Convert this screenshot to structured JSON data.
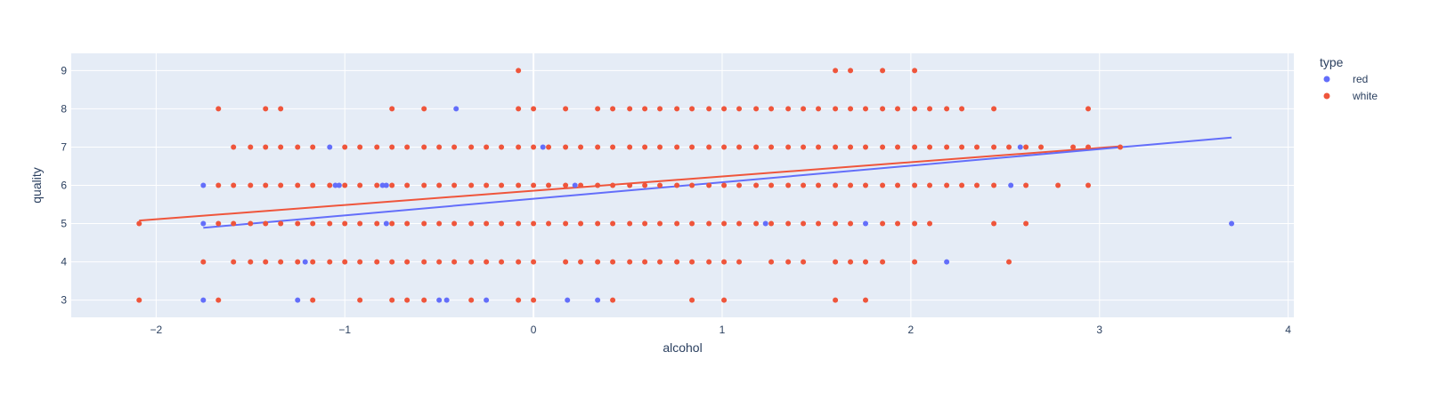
{
  "chart_data": {
    "type": "scatter",
    "title": "",
    "xlabel": "alcohol",
    "ylabel": "quality",
    "xlim": [
      -2.45,
      4.03
    ],
    "ylim": [
      2.55,
      9.45
    ],
    "x_ticks": [
      -2,
      -1,
      0,
      1,
      2,
      3,
      4
    ],
    "y_ticks": [
      3,
      4,
      5,
      6,
      7,
      8,
      9
    ],
    "grid": true,
    "plot_background": "#e5ecf6",
    "legend": {
      "title": "type",
      "placement": "top-right"
    },
    "series": [
      {
        "name": "red",
        "color": "#636efa",
        "points": [
          [
            -1.75,
            6
          ],
          [
            -1.75,
            5
          ],
          [
            -1.75,
            3
          ],
          [
            -1.08,
            7
          ],
          [
            -1.05,
            6
          ],
          [
            -1.03,
            6
          ],
          [
            -0.8,
            6
          ],
          [
            -0.78,
            6
          ],
          [
            -0.78,
            5
          ],
          [
            -1.21,
            4
          ],
          [
            -1.25,
            3
          ],
          [
            -0.5,
            3
          ],
          [
            -0.46,
            3
          ],
          [
            -0.25,
            3
          ],
          [
            -0.41,
            8
          ],
          [
            0.05,
            7
          ],
          [
            0.22,
            6
          ],
          [
            0.18,
            3
          ],
          [
            0.34,
            3
          ],
          [
            1.23,
            5
          ],
          [
            1.76,
            5
          ],
          [
            2.19,
            4
          ],
          [
            2.53,
            6
          ],
          [
            2.58,
            7
          ],
          [
            3.7,
            5
          ]
        ],
        "trendline": [
          [
            -1.75,
            4.89
          ],
          [
            3.7,
            7.25
          ]
        ]
      },
      {
        "name": "white",
        "color": "#ef553b",
        "points": [
          [
            -2.09,
            5
          ],
          [
            -2.09,
            3
          ],
          [
            -1.67,
            8
          ],
          [
            -1.67,
            6
          ],
          [
            -1.67,
            5
          ],
          [
            -1.67,
            3
          ],
          [
            -1.75,
            4
          ],
          [
            -1.59,
            7
          ],
          [
            -1.59,
            6
          ],
          [
            -1.59,
            5
          ],
          [
            -1.59,
            4
          ],
          [
            -1.5,
            7
          ],
          [
            -1.5,
            6
          ],
          [
            -1.5,
            5
          ],
          [
            -1.5,
            4
          ],
          [
            -1.42,
            8
          ],
          [
            -1.42,
            7
          ],
          [
            -1.42,
            6
          ],
          [
            -1.42,
            5
          ],
          [
            -1.42,
            4
          ],
          [
            -1.34,
            8
          ],
          [
            -1.34,
            7
          ],
          [
            -1.34,
            6
          ],
          [
            -1.34,
            5
          ],
          [
            -1.34,
            4
          ],
          [
            -1.25,
            7
          ],
          [
            -1.25,
            6
          ],
          [
            -1.25,
            5
          ],
          [
            -1.25,
            4
          ],
          [
            -1.17,
            7
          ],
          [
            -1.17,
            6
          ],
          [
            -1.17,
            5
          ],
          [
            -1.17,
            4
          ],
          [
            -1.17,
            3
          ],
          [
            -1.08,
            6
          ],
          [
            -1.08,
            5
          ],
          [
            -1.08,
            4
          ],
          [
            -1.0,
            7
          ],
          [
            -1.0,
            6
          ],
          [
            -1.0,
            5
          ],
          [
            -1.0,
            4
          ],
          [
            -0.92,
            7
          ],
          [
            -0.92,
            6
          ],
          [
            -0.92,
            5
          ],
          [
            -0.92,
            4
          ],
          [
            -0.92,
            3
          ],
          [
            -0.83,
            7
          ],
          [
            -0.83,
            6
          ],
          [
            -0.83,
            5
          ],
          [
            -0.83,
            4
          ],
          [
            -0.75,
            8
          ],
          [
            -0.75,
            7
          ],
          [
            -0.75,
            6
          ],
          [
            -0.75,
            5
          ],
          [
            -0.75,
            4
          ],
          [
            -0.75,
            3
          ],
          [
            -0.67,
            7
          ],
          [
            -0.67,
            6
          ],
          [
            -0.67,
            5
          ],
          [
            -0.67,
            4
          ],
          [
            -0.67,
            3
          ],
          [
            -0.58,
            8
          ],
          [
            -0.58,
            7
          ],
          [
            -0.58,
            6
          ],
          [
            -0.58,
            5
          ],
          [
            -0.58,
            4
          ],
          [
            -0.58,
            3
          ],
          [
            -0.5,
            7
          ],
          [
            -0.5,
            6
          ],
          [
            -0.5,
            5
          ],
          [
            -0.5,
            4
          ],
          [
            -0.42,
            7
          ],
          [
            -0.42,
            6
          ],
          [
            -0.42,
            5
          ],
          [
            -0.42,
            4
          ],
          [
            -0.33,
            7
          ],
          [
            -0.33,
            6
          ],
          [
            -0.33,
            5
          ],
          [
            -0.33,
            4
          ],
          [
            -0.33,
            3
          ],
          [
            -0.25,
            7
          ],
          [
            -0.25,
            6
          ],
          [
            -0.25,
            5
          ],
          [
            -0.25,
            4
          ],
          [
            -0.17,
            7
          ],
          [
            -0.17,
            6
          ],
          [
            -0.17,
            5
          ],
          [
            -0.17,
            4
          ],
          [
            -0.08,
            9
          ],
          [
            -0.08,
            8
          ],
          [
            -0.08,
            7
          ],
          [
            -0.08,
            6
          ],
          [
            -0.08,
            5
          ],
          [
            -0.08,
            4
          ],
          [
            -0.08,
            3
          ],
          [
            0.0,
            8
          ],
          [
            0.0,
            7
          ],
          [
            0.0,
            6
          ],
          [
            0.0,
            5
          ],
          [
            0.0,
            4
          ],
          [
            0.0,
            3
          ],
          [
            0.08,
            7
          ],
          [
            0.08,
            6
          ],
          [
            0.08,
            5
          ],
          [
            0.17,
            8
          ],
          [
            0.17,
            7
          ],
          [
            0.17,
            6
          ],
          [
            0.17,
            5
          ],
          [
            0.17,
            4
          ],
          [
            0.25,
            7
          ],
          [
            0.25,
            6
          ],
          [
            0.25,
            5
          ],
          [
            0.25,
            4
          ],
          [
            0.34,
            8
          ],
          [
            0.34,
            7
          ],
          [
            0.34,
            6
          ],
          [
            0.34,
            5
          ],
          [
            0.34,
            4
          ],
          [
            0.42,
            8
          ],
          [
            0.42,
            7
          ],
          [
            0.42,
            6
          ],
          [
            0.42,
            5
          ],
          [
            0.42,
            4
          ],
          [
            0.42,
            3
          ],
          [
            0.51,
            8
          ],
          [
            0.51,
            7
          ],
          [
            0.51,
            6
          ],
          [
            0.51,
            5
          ],
          [
            0.51,
            4
          ],
          [
            0.59,
            8
          ],
          [
            0.59,
            7
          ],
          [
            0.59,
            6
          ],
          [
            0.59,
            5
          ],
          [
            0.59,
            4
          ],
          [
            0.67,
            8
          ],
          [
            0.67,
            7
          ],
          [
            0.67,
            6
          ],
          [
            0.67,
            5
          ],
          [
            0.67,
            4
          ],
          [
            0.76,
            8
          ],
          [
            0.76,
            7
          ],
          [
            0.76,
            6
          ],
          [
            0.76,
            5
          ],
          [
            0.76,
            4
          ],
          [
            0.84,
            8
          ],
          [
            0.84,
            7
          ],
          [
            0.84,
            6
          ],
          [
            0.84,
            5
          ],
          [
            0.84,
            4
          ],
          [
            0.84,
            3
          ],
          [
            0.93,
            8
          ],
          [
            0.93,
            7
          ],
          [
            0.93,
            6
          ],
          [
            0.93,
            5
          ],
          [
            0.93,
            4
          ],
          [
            1.01,
            8
          ],
          [
            1.01,
            7
          ],
          [
            1.01,
            6
          ],
          [
            1.01,
            5
          ],
          [
            1.01,
            4
          ],
          [
            1.01,
            3
          ],
          [
            1.09,
            8
          ],
          [
            1.09,
            7
          ],
          [
            1.09,
            6
          ],
          [
            1.09,
            5
          ],
          [
            1.09,
            4
          ],
          [
            1.18,
            8
          ],
          [
            1.18,
            7
          ],
          [
            1.18,
            6
          ],
          [
            1.18,
            5
          ],
          [
            1.26,
            8
          ],
          [
            1.26,
            7
          ],
          [
            1.26,
            6
          ],
          [
            1.26,
            5
          ],
          [
            1.26,
            4
          ],
          [
            1.35,
            8
          ],
          [
            1.35,
            7
          ],
          [
            1.35,
            6
          ],
          [
            1.35,
            5
          ],
          [
            1.35,
            4
          ],
          [
            1.43,
            8
          ],
          [
            1.43,
            7
          ],
          [
            1.43,
            6
          ],
          [
            1.43,
            5
          ],
          [
            1.43,
            4
          ],
          [
            1.51,
            8
          ],
          [
            1.51,
            7
          ],
          [
            1.51,
            6
          ],
          [
            1.51,
            5
          ],
          [
            1.6,
            9
          ],
          [
            1.6,
            8
          ],
          [
            1.6,
            7
          ],
          [
            1.6,
            6
          ],
          [
            1.6,
            5
          ],
          [
            1.6,
            4
          ],
          [
            1.6,
            3
          ],
          [
            1.68,
            9
          ],
          [
            1.68,
            8
          ],
          [
            1.68,
            7
          ],
          [
            1.68,
            6
          ],
          [
            1.68,
            5
          ],
          [
            1.68,
            4
          ],
          [
            1.76,
            8
          ],
          [
            1.76,
            7
          ],
          [
            1.76,
            6
          ],
          [
            1.76,
            4
          ],
          [
            1.76,
            3
          ],
          [
            1.85,
            9
          ],
          [
            1.85,
            8
          ],
          [
            1.85,
            7
          ],
          [
            1.85,
            6
          ],
          [
            1.85,
            5
          ],
          [
            1.85,
            4
          ],
          [
            1.93,
            8
          ],
          [
            1.93,
            7
          ],
          [
            1.93,
            6
          ],
          [
            1.93,
            5
          ],
          [
            2.02,
            9
          ],
          [
            2.02,
            8
          ],
          [
            2.02,
            7
          ],
          [
            2.02,
            6
          ],
          [
            2.02,
            5
          ],
          [
            2.02,
            4
          ],
          [
            2.1,
            8
          ],
          [
            2.1,
            7
          ],
          [
            2.1,
            6
          ],
          [
            2.1,
            5
          ],
          [
            2.19,
            8
          ],
          [
            2.19,
            7
          ],
          [
            2.19,
            6
          ],
          [
            2.27,
            8
          ],
          [
            2.27,
            7
          ],
          [
            2.27,
            6
          ],
          [
            2.35,
            7
          ],
          [
            2.35,
            6
          ],
          [
            2.44,
            8
          ],
          [
            2.44,
            7
          ],
          [
            2.44,
            6
          ],
          [
            2.44,
            5
          ],
          [
            2.52,
            7
          ],
          [
            2.52,
            4
          ],
          [
            2.61,
            7
          ],
          [
            2.61,
            6
          ],
          [
            2.61,
            5
          ],
          [
            2.69,
            7
          ],
          [
            2.78,
            6
          ],
          [
            2.86,
            7
          ],
          [
            2.94,
            8
          ],
          [
            2.94,
            7
          ],
          [
            2.94,
            6
          ],
          [
            3.11,
            7
          ]
        ],
        "trendline": [
          [
            -2.09,
            5.08
          ],
          [
            3.11,
            7.02
          ]
        ]
      }
    ]
  }
}
